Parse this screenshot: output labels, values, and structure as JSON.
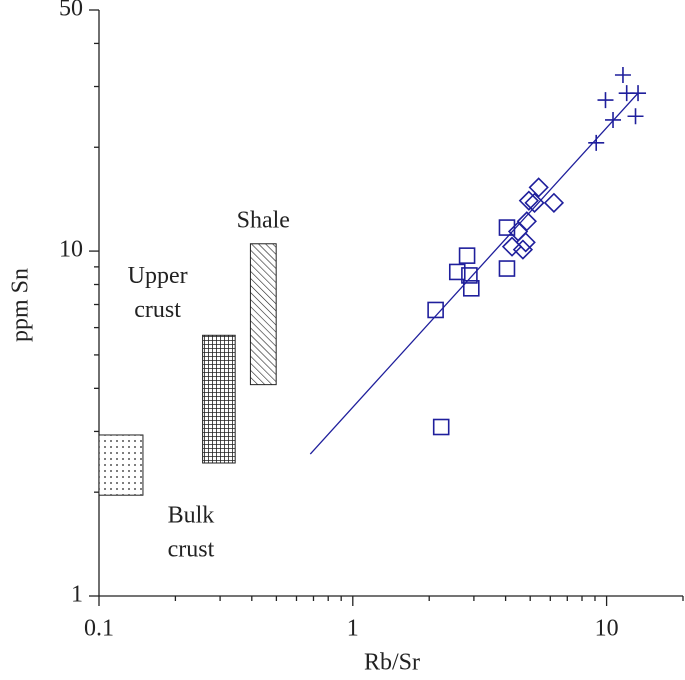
{
  "chart_data": {
    "type": "scatter",
    "xlabel": "Rb/Sr",
    "ylabel": "ppm Sn",
    "xscale": "log",
    "yscale": "log",
    "xlim": [
      0.1,
      20
    ],
    "ylim": [
      1,
      50
    ],
    "xticks": [
      0.1,
      1,
      10
    ],
    "yticks": [
      1,
      10,
      50
    ],
    "xminorticks": [
      0.2,
      0.3,
      0.4,
      0.5,
      0.6,
      0.7,
      0.8,
      0.9,
      2,
      3,
      4,
      5,
      6,
      7,
      8,
      9,
      20
    ],
    "yminorticks": [
      2,
      3,
      4,
      5,
      6,
      7,
      8,
      9,
      20,
      30,
      40
    ],
    "series": [
      {
        "marker": "square",
        "color": "#1f1f9c",
        "x": [
          2.12,
          2.82,
          2.58,
          2.88,
          2.93,
          4.05,
          4.05,
          2.23
        ],
        "values": [
          6.75,
          9.7,
          8.7,
          8.5,
          7.8,
          11.7,
          8.9,
          3.09
        ]
      },
      {
        "marker": "diamond",
        "color": "#1f1f9c",
        "x": [
          4.24,
          4.48,
          4.68,
          4.8,
          4.85,
          4.94,
          5.2,
          5.4,
          6.2
        ],
        "values": [
          10.3,
          11.4,
          10.1,
          10.6,
          12.2,
          14.0,
          13.8,
          15.3,
          13.8
        ]
      },
      {
        "marker": "plus",
        "color": "#1f1f9c",
        "x": [
          9.1,
          10.6,
          9.9,
          11.6,
          12.0,
          13.0,
          13.3
        ],
        "values": [
          20.6,
          24.0,
          27.4,
          32.4,
          28.7,
          24.6,
          28.7
        ]
      }
    ],
    "fit_line": {
      "color": "#1f1f9c",
      "x": [
        0.68,
        13.3
      ],
      "values": [
        2.58,
        28.7
      ]
    },
    "regions": [
      {
        "label": [
          "Bulk",
          "crust"
        ],
        "pattern": "dots",
        "x": [
          0.1,
          0.149
        ],
        "y": [
          1.96,
          2.93
        ]
      },
      {
        "label": [
          "Upper",
          "crust"
        ],
        "pattern": "grid",
        "x": [
          0.256,
          0.344
        ],
        "y": [
          2.43,
          5.7
        ]
      },
      {
        "label": [
          "Shale"
        ],
        "pattern": "hatch",
        "x": [
          0.395,
          0.499
        ],
        "y": [
          4.1,
          10.5
        ]
      }
    ]
  }
}
